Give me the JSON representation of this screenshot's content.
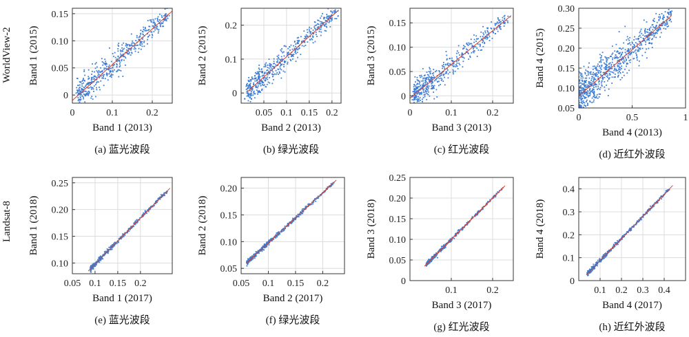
{
  "row_labels": [
    "WorldView-2",
    "Landsat-8"
  ],
  "colors": {
    "points": "#3a7bd5",
    "fit_line": "#d9412b",
    "grid": "#dcdcdc",
    "axes": "#333333"
  },
  "chart_data": [
    {
      "type": "scatter",
      "caption": "(a) 蓝光波段",
      "xlabel": "Band 1 (2013)",
      "ylabel": "Band 1 (2015)",
      "xlim": [
        0,
        0.25
      ],
      "ylim": [
        -0.015,
        0.16
      ],
      "xticks": [
        0,
        0.1,
        0.2
      ],
      "yticks": [
        0,
        0.05,
        0.1,
        0.15
      ],
      "xtick_labels": [
        "0",
        "0.1",
        "0.2"
      ],
      "ytick_labels": [
        "0",
        "0.05",
        "0.10",
        "0.15"
      ],
      "fit_line": [
        [
          0,
          -0.01
        ],
        [
          0.25,
          0.155
        ]
      ],
      "scatter_range": [
        0.015,
        0.24
      ],
      "spread": 0.012,
      "n_points": 500,
      "grid": true
    },
    {
      "type": "scatter",
      "caption": "(b) 绿光波段",
      "xlabel": "Band 2 (2013)",
      "ylabel": "Band 2 (2015)",
      "xlim": [
        0,
        0.22
      ],
      "ylim": [
        -0.03,
        0.25
      ],
      "xticks": [
        0.05,
        0.1,
        0.15,
        0.2
      ],
      "yticks": [
        0,
        0.1,
        0.2
      ],
      "xtick_labels": [
        "0.05",
        "0.1",
        "0.15",
        "0.2"
      ],
      "ytick_labels": [
        "0",
        "0.1",
        "0.2"
      ],
      "fit_line": [
        [
          0.015,
          0.005
        ],
        [
          0.215,
          0.245
        ]
      ],
      "scatter_range": [
        0.015,
        0.21
      ],
      "spread": 0.018,
      "n_points": 500,
      "grid": true
    },
    {
      "type": "scatter",
      "caption": "(c) 红光波段",
      "xlabel": "Band 3 (2013)",
      "ylabel": "Band 3 (2015)",
      "xlim": [
        0,
        0.25
      ],
      "ylim": [
        -0.015,
        0.18
      ],
      "xticks": [
        0,
        0.1,
        0.2
      ],
      "yticks": [
        0,
        0.05,
        0.1,
        0.15
      ],
      "xtick_labels": [
        "0",
        "0.1",
        "0.2"
      ],
      "ytick_labels": [
        "0",
        "0.05",
        "0.10",
        "0.15"
      ],
      "fit_line": [
        [
          0,
          -0.005
        ],
        [
          0.245,
          0.165
        ]
      ],
      "scatter_range": [
        0.01,
        0.24
      ],
      "spread": 0.012,
      "n_points": 500,
      "grid": true
    },
    {
      "type": "scatter",
      "caption": "(d) 近红外波段",
      "xlabel": "Band 4 (2013)",
      "ylabel": "Band 4 (2015)",
      "xlim": [
        0,
        1
      ],
      "ylim": [
        0.05,
        0.3
      ],
      "xticks": [
        0,
        0.5,
        1
      ],
      "yticks": [
        0.05,
        0.1,
        0.15,
        0.2,
        0.25,
        0.3
      ],
      "xtick_labels": [
        "0",
        "0.5",
        "1"
      ],
      "ytick_labels": [
        "0.05",
        "0.10",
        "0.15",
        "0.20",
        "0.25",
        "0.30"
      ],
      "fit_line": [
        [
          0,
          0.08
        ],
        [
          0.87,
          0.282
        ]
      ],
      "scatter_range": [
        0.0,
        0.87
      ],
      "spread": 0.022,
      "n_points": 800,
      "grid": true
    },
    {
      "type": "scatter",
      "caption": "(e) 蓝光波段",
      "xlabel": "Band 1 (2017)",
      "ylabel": "Band 1 (2018)",
      "xlim": [
        0.05,
        0.27
      ],
      "ylim": [
        0.08,
        0.26
      ],
      "xticks": [
        0.05,
        0.1,
        0.15,
        0.2
      ],
      "yticks": [
        0.1,
        0.15,
        0.2,
        0.25
      ],
      "xtick_labels": [
        "0.05",
        "0.1",
        "0.15",
        "0.2"
      ],
      "ytick_labels": [
        "0.10",
        "0.15",
        "0.20",
        "0.25"
      ],
      "fit_line": [
        [
          0.085,
          0.085
        ],
        [
          0.265,
          0.24
        ]
      ],
      "scatter_range": [
        0.09,
        0.26
      ],
      "spread": 0.002,
      "n_points": 400,
      "grid": true
    },
    {
      "type": "scatter",
      "caption": "(f) 绿光波段",
      "xlabel": "Band 2 (2017)",
      "ylabel": "Band 2 (2018)",
      "xlim": [
        0.05,
        0.24
      ],
      "ylim": [
        0.04,
        0.22
      ],
      "xticks": [
        0.05,
        0.1,
        0.15,
        0.2
      ],
      "yticks": [
        0.05,
        0.1,
        0.15,
        0.2
      ],
      "xtick_labels": [
        "0.05",
        "0.1",
        "0.15",
        "0.2"
      ],
      "ytick_labels": [
        "0.05",
        "0.10",
        "0.15",
        "0.20"
      ],
      "fit_line": [
        [
          0.06,
          0.06
        ],
        [
          0.225,
          0.215
        ]
      ],
      "scatter_range": [
        0.06,
        0.22
      ],
      "spread": 0.002,
      "n_points": 400,
      "grid": true
    },
    {
      "type": "scatter",
      "caption": "(g) 红光波段",
      "xlabel": "Band 3 (2017)",
      "ylabel": "Band 3 (2018)",
      "xlim": [
        0,
        0.25
      ],
      "ylim": [
        0,
        0.25
      ],
      "xticks": [
        0.1,
        0.2
      ],
      "yticks": [
        0,
        0.05,
        0.1,
        0.15,
        0.2,
        0.25
      ],
      "xtick_labels": [
        "0.1",
        "0.2"
      ],
      "ytick_labels": [
        "0",
        "0.05",
        "0.10",
        "0.15",
        "0.20",
        "0.25"
      ],
      "fit_line": [
        [
          0.035,
          0.035
        ],
        [
          0.23,
          0.23
        ]
      ],
      "scatter_range": [
        0.04,
        0.225
      ],
      "spread": 0.002,
      "n_points": 400,
      "grid": true
    },
    {
      "type": "scatter",
      "caption": "(h) 近红外波段",
      "xlabel": "Band 4 (2017)",
      "ylabel": "Band 4 (2018)",
      "xlim": [
        0,
        0.5
      ],
      "ylim": [
        0,
        0.45
      ],
      "xticks": [
        0.1,
        0.2,
        0.3,
        0.4
      ],
      "yticks": [
        0,
        0.1,
        0.2,
        0.3,
        0.4
      ],
      "xtick_labels": [
        "0.1",
        "0.2",
        "0.3",
        "0.4"
      ],
      "ytick_labels": [
        "0",
        "0.1",
        "0.2",
        "0.3",
        "0.4"
      ],
      "fit_line": [
        [
          0.035,
          0.025
        ],
        [
          0.44,
          0.415
        ]
      ],
      "scatter_range": [
        0.04,
        0.43
      ],
      "spread": 0.004,
      "n_points": 400,
      "grid": true
    }
  ]
}
